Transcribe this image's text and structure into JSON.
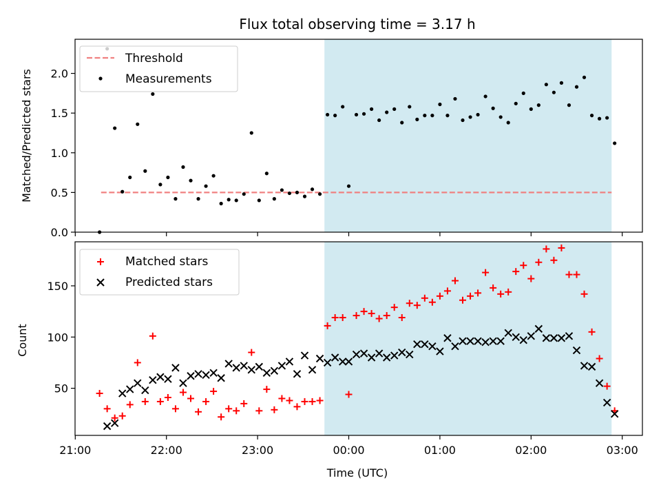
{
  "title": "Flux total observing time = 3.17 h",
  "colors": {
    "shade": "#add8e6",
    "threshold": "#f08080",
    "measurement": "#000000",
    "matched": "#ff0000",
    "predicted": "#000000"
  },
  "chart_data": [
    {
      "type": "scatter",
      "panel": "top",
      "ylabel": "Matched/Predicted stars",
      "ylim": [
        0,
        2.43
      ],
      "yticks": [
        "0.0",
        "0.5",
        "1.0",
        "1.5",
        "2.0"
      ],
      "legend": {
        "placement": "top-left",
        "threshold_label": "Threshold",
        "measurements_label": "Measurements"
      },
      "threshold": {
        "value": 0.5,
        "x_start": "21:17",
        "x_end": "02:53"
      },
      "shaded_region": {
        "x_start": "23:44",
        "x_end": "02:53"
      },
      "measurements": [
        [
          "21:16",
          0.0
        ],
        [
          "21:21",
          2.31
        ],
        [
          "21:26",
          1.31
        ],
        [
          "21:31",
          0.51
        ],
        [
          "21:36",
          0.69
        ],
        [
          "21:41",
          1.36
        ],
        [
          "21:46",
          0.77
        ],
        [
          "21:51",
          1.74
        ],
        [
          "21:56",
          0.6
        ],
        [
          "22:01",
          0.69
        ],
        [
          "22:06",
          0.42
        ],
        [
          "22:11",
          0.82
        ],
        [
          "22:16",
          0.65
        ],
        [
          "22:21",
          0.42
        ],
        [
          "22:26",
          0.58
        ],
        [
          "22:31",
          0.71
        ],
        [
          "22:36",
          0.36
        ],
        [
          "22:41",
          0.41
        ],
        [
          "22:46",
          0.4
        ],
        [
          "22:51",
          0.48
        ],
        [
          "22:56",
          1.25
        ],
        [
          "23:01",
          0.4
        ],
        [
          "23:06",
          0.74
        ],
        [
          "23:11",
          0.42
        ],
        [
          "23:16",
          0.53
        ],
        [
          "23:21",
          0.49
        ],
        [
          "23:26",
          0.5
        ],
        [
          "23:31",
          0.45
        ],
        [
          "23:36",
          0.54
        ],
        [
          "23:41",
          0.48
        ],
        [
          "23:46",
          1.48
        ],
        [
          "23:51",
          1.47
        ],
        [
          "23:56",
          1.58
        ],
        [
          "00:00",
          0.58
        ],
        [
          "00:05",
          1.48
        ],
        [
          "00:10",
          1.49
        ],
        [
          "00:15",
          1.55
        ],
        [
          "00:20",
          1.41
        ],
        [
          "00:25",
          1.51
        ],
        [
          "00:30",
          1.55
        ],
        [
          "00:35",
          1.38
        ],
        [
          "00:40",
          1.58
        ],
        [
          "00:45",
          1.42
        ],
        [
          "00:50",
          1.47
        ],
        [
          "00:55",
          1.47
        ],
        [
          "01:00",
          1.61
        ],
        [
          "01:05",
          1.47
        ],
        [
          "01:10",
          1.68
        ],
        [
          "01:15",
          1.41
        ],
        [
          "01:20",
          1.45
        ],
        [
          "01:25",
          1.48
        ],
        [
          "01:30",
          1.71
        ],
        [
          "01:35",
          1.56
        ],
        [
          "01:40",
          1.45
        ],
        [
          "01:45",
          1.38
        ],
        [
          "01:50",
          1.62
        ],
        [
          "01:55",
          1.75
        ],
        [
          "02:00",
          1.55
        ],
        [
          "02:05",
          1.6
        ],
        [
          "02:10",
          1.86
        ],
        [
          "02:15",
          1.76
        ],
        [
          "02:20",
          1.88
        ],
        [
          "02:25",
          1.6
        ],
        [
          "02:30",
          1.83
        ],
        [
          "02:35",
          1.95
        ],
        [
          "02:40",
          1.47
        ],
        [
          "02:45",
          1.43
        ],
        [
          "02:50",
          1.44
        ],
        [
          "02:55",
          1.12
        ]
      ]
    },
    {
      "type": "scatter",
      "panel": "bottom",
      "ylabel": "Count",
      "xlabel": "Time (UTC)",
      "ylim": [
        4,
        193
      ],
      "yticks": [
        "50",
        "100",
        "150"
      ],
      "xticks": [
        "21:00",
        "22:00",
        "23:00",
        "00:00",
        "01:00",
        "02:00",
        "03:00"
      ],
      "legend": {
        "placement": "top-left"
      },
      "shaded_region": {
        "x_start": "23:44",
        "x_end": "02:53"
      },
      "series": [
        {
          "name": "Matched stars",
          "marker": "plus",
          "points": [
            [
              "21:16",
              45
            ],
            [
              "21:21",
              30
            ],
            [
              "21:26",
              21
            ],
            [
              "21:31",
              23
            ],
            [
              "21:36",
              34
            ],
            [
              "21:41",
              75
            ],
            [
              "21:46",
              37
            ],
            [
              "21:51",
              101
            ],
            [
              "21:56",
              37
            ],
            [
              "22:01",
              41
            ],
            [
              "22:06",
              30
            ],
            [
              "22:11",
              46
            ],
            [
              "22:16",
              40
            ],
            [
              "22:21",
              27
            ],
            [
              "22:26",
              37
            ],
            [
              "22:31",
              47
            ],
            [
              "22:36",
              22
            ],
            [
              "22:41",
              30
            ],
            [
              "22:46",
              28
            ],
            [
              "22:51",
              35
            ],
            [
              "22:56",
              85
            ],
            [
              "23:01",
              28
            ],
            [
              "23:06",
              49
            ],
            [
              "23:11",
              29
            ],
            [
              "23:16",
              40
            ],
            [
              "23:21",
              38
            ],
            [
              "23:26",
              32
            ],
            [
              "23:31",
              37
            ],
            [
              "23:36",
              37
            ],
            [
              "23:41",
              38
            ],
            [
              "23:46",
              111
            ],
            [
              "23:51",
              119
            ],
            [
              "23:56",
              119
            ],
            [
              "00:00",
              44
            ],
            [
              "00:05",
              121
            ],
            [
              "00:10",
              125
            ],
            [
              "00:15",
              123
            ],
            [
              "00:20",
              118
            ],
            [
              "00:25",
              121
            ],
            [
              "00:30",
              129
            ],
            [
              "00:35",
              119
            ],
            [
              "00:40",
              133
            ],
            [
              "00:45",
              131
            ],
            [
              "00:50",
              138
            ],
            [
              "00:55",
              134
            ],
            [
              "01:00",
              140
            ],
            [
              "01:05",
              145
            ],
            [
              "01:10",
              155
            ],
            [
              "01:15",
              136
            ],
            [
              "01:20",
              140
            ],
            [
              "01:25",
              143
            ],
            [
              "01:30",
              163
            ],
            [
              "01:35",
              148
            ],
            [
              "01:40",
              142
            ],
            [
              "01:45",
              144
            ],
            [
              "01:50",
              164
            ],
            [
              "01:55",
              170
            ],
            [
              "02:00",
              157
            ],
            [
              "02:05",
              173
            ],
            [
              "02:10",
              186
            ],
            [
              "02:15",
              175
            ],
            [
              "02:20",
              187
            ],
            [
              "02:25",
              161
            ],
            [
              "02:30",
              161
            ],
            [
              "02:35",
              142
            ],
            [
              "02:40",
              105
            ],
            [
              "02:45",
              79
            ],
            [
              "02:50",
              52
            ],
            [
              "02:55",
              28
            ]
          ]
        },
        {
          "name": "Predicted stars",
          "marker": "x",
          "points": [
            [
              "21:21",
              13
            ],
            [
              "21:26",
              16
            ],
            [
              "21:31",
              45
            ],
            [
              "21:36",
              49
            ],
            [
              "21:41",
              55
            ],
            [
              "21:46",
              48
            ],
            [
              "21:51",
              58
            ],
            [
              "21:56",
              61
            ],
            [
              "22:01",
              59
            ],
            [
              "22:06",
              70
            ],
            [
              "22:11",
              55
            ],
            [
              "22:16",
              62
            ],
            [
              "22:21",
              64
            ],
            [
              "22:26",
              63
            ],
            [
              "22:31",
              65
            ],
            [
              "22:36",
              60
            ],
            [
              "22:41",
              74
            ],
            [
              "22:46",
              70
            ],
            [
              "22:51",
              72
            ],
            [
              "22:56",
              68
            ],
            [
              "23:01",
              71
            ],
            [
              "23:06",
              65
            ],
            [
              "23:11",
              67
            ],
            [
              "23:16",
              72
            ],
            [
              "23:21",
              76
            ],
            [
              "23:26",
              64
            ],
            [
              "23:31",
              82
            ],
            [
              "23:36",
              68
            ],
            [
              "23:41",
              79
            ],
            [
              "23:46",
              75
            ],
            [
              "23:51",
              80
            ],
            [
              "23:56",
              76
            ],
            [
              "00:00",
              76
            ],
            [
              "00:05",
              83
            ],
            [
              "00:10",
              84
            ],
            [
              "00:15",
              80
            ],
            [
              "00:20",
              84
            ],
            [
              "00:25",
              80
            ],
            [
              "00:30",
              82
            ],
            [
              "00:35",
              85
            ],
            [
              "00:40",
              83
            ],
            [
              "00:45",
              93
            ],
            [
              "00:50",
              93
            ],
            [
              "00:55",
              91
            ],
            [
              "01:00",
              86
            ],
            [
              "01:05",
              99
            ],
            [
              "01:10",
              91
            ],
            [
              "01:15",
              96
            ],
            [
              "01:20",
              96
            ],
            [
              "01:25",
              96
            ],
            [
              "01:30",
              95
            ],
            [
              "01:35",
              96
            ],
            [
              "01:40",
              96
            ],
            [
              "01:45",
              104
            ],
            [
              "01:50",
              100
            ],
            [
              "01:55",
              97
            ],
            [
              "02:00",
              101
            ],
            [
              "02:05",
              108
            ],
            [
              "02:10",
              99
            ],
            [
              "02:15",
              99
            ],
            [
              "02:20",
              99
            ],
            [
              "02:25",
              101
            ],
            [
              "02:30",
              87
            ],
            [
              "02:35",
              72
            ],
            [
              "02:40",
              71
            ],
            [
              "02:45",
              55
            ],
            [
              "02:50",
              36
            ],
            [
              "02:55",
              25
            ]
          ]
        }
      ]
    }
  ]
}
